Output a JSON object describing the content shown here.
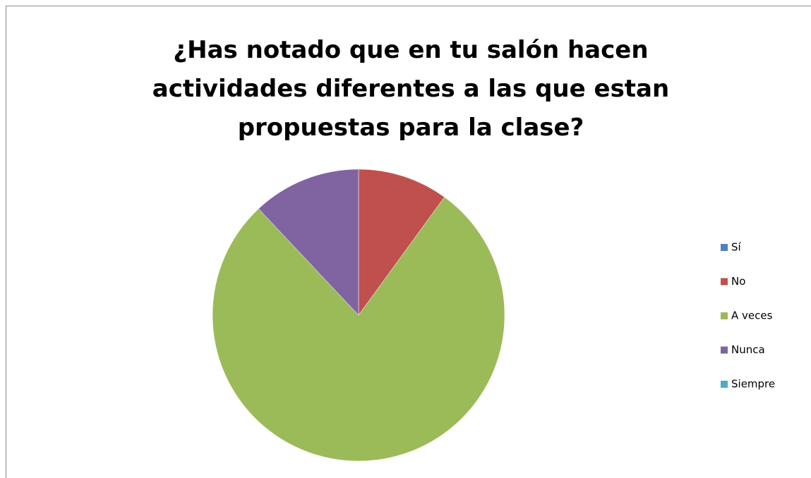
{
  "chart_data": {
    "type": "pie",
    "title": [
      "¿Has notado que en tu salón hacen",
      "actividades diferentes a las que estan",
      "propuestas para la clase?"
    ],
    "categories": [
      "Sí",
      "No",
      "A veces",
      "Nunca",
      "Siempre"
    ],
    "values": [
      0,
      10,
      78,
      12,
      0
    ],
    "colors": [
      "#4f81bd",
      "#c0504d",
      "#9bbb59",
      "#8064a2",
      "#4bacc6"
    ],
    "legend": "right"
  }
}
